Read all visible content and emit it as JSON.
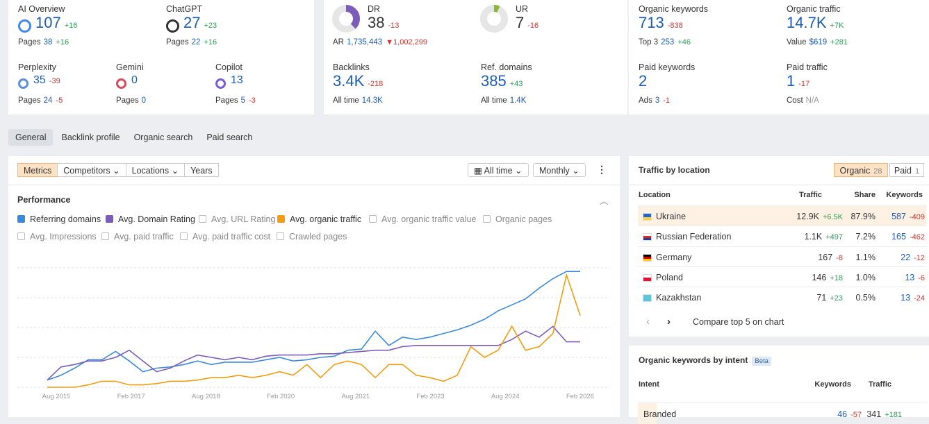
{
  "ai_visibility": [
    {
      "label": "AI Overview",
      "value": "107",
      "delta": "+16",
      "sub_label": "Pages",
      "sub_value": "38",
      "sub_delta": "+16"
    },
    {
      "label": "ChatGPT",
      "value": "27",
      "delta": "+23",
      "sub_label": "Pages",
      "sub_value": "22",
      "sub_delta": "+16"
    },
    {
      "label": "Perplexity",
      "value": "35",
      "delta": "-39",
      "sub_label": "Pages",
      "sub_value": "24",
      "sub_delta": "-5"
    },
    {
      "label": "Gemini",
      "value": "0",
      "sub_label": "Pages",
      "sub_value": "0"
    },
    {
      "label": "Copilot",
      "value": "13",
      "sub_label": "Pages",
      "sub_value": "5",
      "sub_delta": "-3"
    }
  ],
  "authority": {
    "dr": {
      "label": "DR",
      "value": 38,
      "delta": "-13",
      "sub_label": "AR",
      "sub_value": "1,735,443",
      "sub_delta": "▼1,002,299"
    },
    "ur": {
      "label": "UR",
      "value": 7,
      "delta": "-16"
    },
    "backlinks": {
      "label": "Backlinks",
      "value": "3.4K",
      "delta": "-218",
      "sub_label": "All time",
      "sub_value": "14.3K"
    },
    "ref_domains": {
      "label": "Ref. domains",
      "value": "385",
      "delta": "+43",
      "sub_label": "All time",
      "sub_value": "1.4K"
    }
  },
  "search": [
    {
      "label": "Organic keywords",
      "value": "713",
      "delta": "-838",
      "sub_label": "Top 3",
      "sub_value": "253",
      "sub_delta": "+46"
    },
    {
      "label": "Organic traffic",
      "value": "14.7K",
      "delta": "+7K",
      "sub_label": "Value",
      "sub_value": "$619",
      "sub_delta": "+281"
    },
    {
      "label": "Paid keywords",
      "value": "2",
      "sub_label": "Ads",
      "sub_value": "3",
      "sub_delta": "-1"
    },
    {
      "label": "Paid traffic",
      "value": "1",
      "delta": "-17",
      "sub_label": "Cost",
      "sub_value": "N/A"
    }
  ],
  "tabs": [
    "General",
    "Backlink profile",
    "Organic search",
    "Paid search"
  ],
  "toolbar": {
    "left": [
      "Metrics",
      "Competitors",
      "Locations",
      "Years"
    ],
    "right": [
      "All time",
      "Monthly"
    ]
  },
  "performance": {
    "title": "Performance"
  },
  "chart_data": {
    "type": "line",
    "ylim": [
      0,
      100
    ],
    "x_labels": [
      "Aug 2015",
      "Feb 2017",
      "Aug 2018",
      "Feb 2020",
      "Aug 2021",
      "Feb 2023",
      "Aug 2024",
      "Feb 2026"
    ],
    "series": [
      {
        "name": "Referring domains",
        "color": "#3b8ad9",
        "values": [
          6,
          10,
          16,
          23,
          23,
          30,
          22,
          13,
          16,
          17,
          19,
          22,
          19,
          21,
          21,
          21,
          23,
          25,
          22,
          23,
          25,
          26,
          31,
          32,
          47,
          35,
          42,
          40,
          42,
          45,
          48,
          52,
          57,
          64,
          69,
          74,
          83,
          91,
          97,
          97
        ]
      },
      {
        "name": "Avg. Domain Rating",
        "color": "#7b5cb8",
        "values": [
          6,
          17,
          19,
          22,
          22,
          25,
          31,
          22,
          13,
          16,
          22,
          27,
          25,
          23,
          25,
          23,
          26,
          27,
          27,
          27,
          28,
          28,
          29,
          30,
          31,
          31,
          34,
          35,
          35,
          35,
          35,
          35,
          35,
          35,
          40,
          47,
          42,
          51,
          38,
          38
        ]
      },
      {
        "name": "Avg. organic traffic",
        "color": "#f39c12",
        "values": [
          0,
          0,
          0,
          2,
          5,
          5,
          2,
          2,
          3,
          5,
          5,
          6,
          8,
          8,
          10,
          8,
          10,
          13,
          10,
          19,
          8,
          19,
          22,
          19,
          8,
          19,
          19,
          10,
          8,
          5,
          10,
          34,
          25,
          31,
          51,
          31,
          34,
          45,
          94,
          60
        ]
      }
    ],
    "other_options": [
      "Avg. URL Rating",
      "Avg. organic traffic value",
      "Organic pages",
      "Avg. Impressions",
      "Avg. paid traffic",
      "Avg. paid traffic cost",
      "Crawled pages"
    ]
  },
  "traffic_by_location": {
    "title": "Traffic by location",
    "tabs": [
      {
        "label": "Organic",
        "count": "28"
      },
      {
        "label": "Paid",
        "count": "1"
      }
    ],
    "headers": [
      "Location",
      "Traffic",
      "Share",
      "Keywords"
    ],
    "rows": [
      {
        "location": "Ukraine",
        "traffic": "12.9K",
        "traffic_delta": "+6.5K",
        "share": "87.9%",
        "keywords": "587",
        "keywords_delta": "-409"
      },
      {
        "location": "Russian Federation",
        "traffic": "1.1K",
        "traffic_delta": "+497",
        "share": "7.2%",
        "keywords": "165",
        "keywords_delta": "-462"
      },
      {
        "location": "Germany",
        "traffic": "167",
        "traffic_delta": "-8",
        "share": "1.1%",
        "keywords": "22",
        "keywords_delta": "-12"
      },
      {
        "location": "Poland",
        "traffic": "146",
        "traffic_delta": "+18",
        "share": "1.0%",
        "keywords": "13",
        "keywords_delta": "-6"
      },
      {
        "location": "Kazakhstan",
        "traffic": "71",
        "traffic_delta": "+23",
        "share": "0.5%",
        "keywords": "13",
        "keywords_delta": "-24"
      }
    ],
    "compare": "Compare top 5 on chart"
  },
  "intent": {
    "title": "Organic keywords by intent",
    "badge": "Beta",
    "headers": [
      "Intent",
      "Keywords",
      "Traffic"
    ],
    "rows": [
      {
        "intent": "Branded",
        "keywords": "46",
        "keywords_delta": "-57",
        "traffic": "341",
        "traffic_delta": "+181"
      }
    ]
  }
}
